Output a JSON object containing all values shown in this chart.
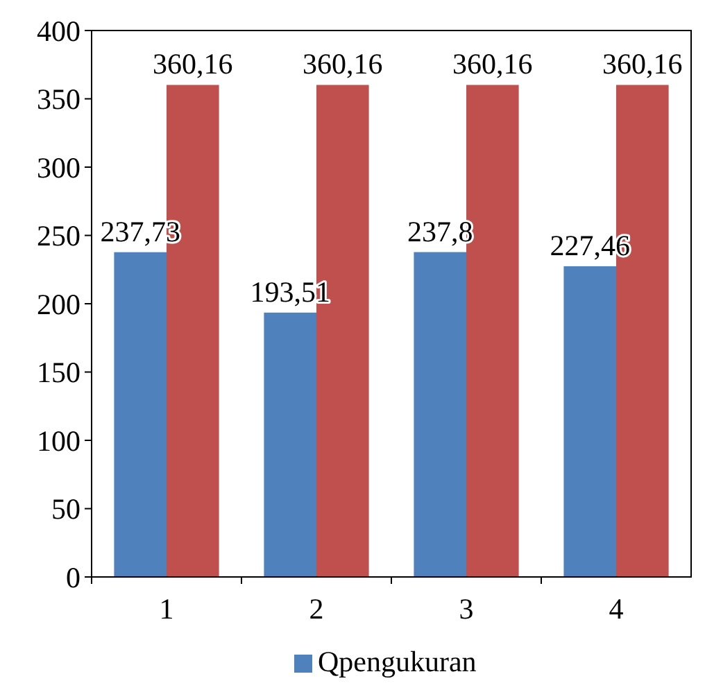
{
  "chart_data": {
    "type": "bar",
    "categories": [
      "1",
      "2",
      "3",
      "4"
    ],
    "series": [
      {
        "name": "Qpengukuran",
        "color": "#4f81bd",
        "values": [
          237.73,
          193.51,
          237.8,
          227.46
        ],
        "value_labels": [
          "237,73",
          "193,51",
          "237,8",
          "227,46"
        ]
      },
      {
        "color": "#c0504d",
        "values": [
          360.16,
          360.16,
          360.16,
          360.16
        ],
        "value_labels": [
          "360,16",
          "360,16",
          "360,16",
          "360,16"
        ]
      }
    ],
    "ylim": [
      0,
      400
    ],
    "yticks": [
      0,
      50,
      100,
      150,
      200,
      250,
      300,
      350,
      400
    ],
    "grid": false,
    "legend": "bottom"
  }
}
